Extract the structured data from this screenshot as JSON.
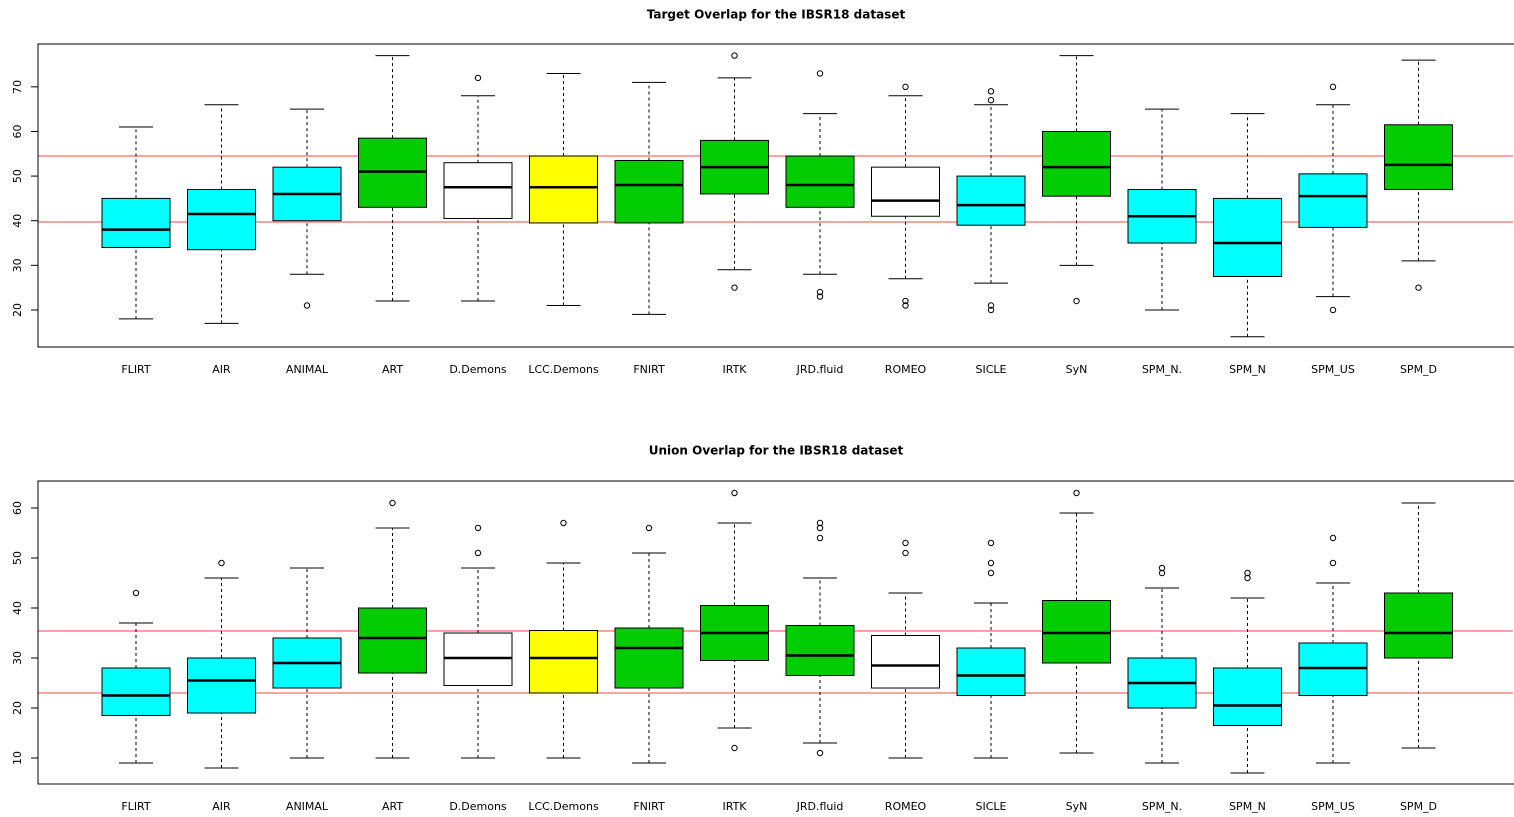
{
  "chart_data": [
    {
      "type": "box",
      "title": "Target Overlap for the IBSR18 dataset",
      "categories": [
        "FLIRT",
        "AIR",
        "ANIMAL",
        "ART",
        "D.Demons",
        "LCC.Demons",
        "FNIRT",
        "IRTK",
        "JRD.fluid",
        "ROMEO",
        "SICLE",
        "SyN",
        "SPM_N.",
        "SPM_N",
        "SPM_US",
        "SPM_D"
      ],
      "colors": [
        "#00ffff",
        "#00ffff",
        "#00ffff",
        "#00cc00",
        "#ffffff",
        "#ffff00",
        "#00cc00",
        "#00cc00",
        "#00cc00",
        "#ffffff",
        "#00ffff",
        "#00cc00",
        "#00ffff",
        "#00ffff",
        "#00ffff",
        "#00cc00"
      ],
      "boxes": [
        {
          "low": 18,
          "q1": 34,
          "median": 38,
          "q3": 45,
          "high": 61,
          "outliers": []
        },
        {
          "low": 17,
          "q1": 33.5,
          "median": 41.5,
          "q3": 47,
          "high": 66,
          "outliers": []
        },
        {
          "low": 28,
          "q1": 40,
          "median": 46,
          "q3": 52,
          "high": 65,
          "outliers": [
            21
          ]
        },
        {
          "low": 22,
          "q1": 43,
          "median": 51,
          "q3": 58.5,
          "high": 77,
          "outliers": []
        },
        {
          "low": 22,
          "q1": 40.5,
          "median": 47.5,
          "q3": 53,
          "high": 68,
          "outliers": [
            72
          ]
        },
        {
          "low": 21,
          "q1": 39.5,
          "median": 47.5,
          "q3": 54.5,
          "high": 73,
          "outliers": []
        },
        {
          "low": 19,
          "q1": 39.5,
          "median": 48,
          "q3": 53.5,
          "high": 71,
          "outliers": []
        },
        {
          "low": 29,
          "q1": 46,
          "median": 52,
          "q3": 58,
          "high": 72,
          "outliers": [
            77,
            25
          ]
        },
        {
          "low": 28,
          "q1": 43,
          "median": 48,
          "q3": 54.5,
          "high": 64,
          "outliers": [
            73,
            24,
            23
          ]
        },
        {
          "low": 27,
          "q1": 41,
          "median": 44.5,
          "q3": 52,
          "high": 68,
          "outliers": [
            70,
            22,
            21
          ]
        },
        {
          "low": 26,
          "q1": 39,
          "median": 43.5,
          "q3": 50,
          "high": 66,
          "outliers": [
            69,
            67,
            21,
            20
          ]
        },
        {
          "low": 30,
          "q1": 45.5,
          "median": 52,
          "q3": 60,
          "high": 77,
          "outliers": [
            22
          ]
        },
        {
          "low": 20,
          "q1": 35,
          "median": 41,
          "q3": 47,
          "high": 65,
          "outliers": []
        },
        {
          "low": 14,
          "q1": 27.5,
          "median": 35,
          "q3": 45,
          "high": 64,
          "outliers": []
        },
        {
          "low": 23,
          "q1": 38.5,
          "median": 45.5,
          "q3": 50.5,
          "high": 66,
          "outliers": [
            70,
            20
          ]
        },
        {
          "low": 31,
          "q1": 47,
          "median": 52.5,
          "q3": 61.5,
          "high": 76,
          "outliers": [
            25
          ]
        }
      ],
      "reference_lines": [
        54.5,
        39.7
      ],
      "reference_color": "#ff4444",
      "ylim": [
        11.7,
        79.6
      ],
      "yticks": [
        20,
        30,
        40,
        50,
        60,
        70
      ]
    },
    {
      "type": "box",
      "title": "Union Overlap for the IBSR18 dataset",
      "categories": [
        "FLIRT",
        "AIR",
        "ANIMAL",
        "ART",
        "D.Demons",
        "LCC.Demons",
        "FNIRT",
        "IRTK",
        "JRD.fluid",
        "ROMEO",
        "SICLE",
        "SyN",
        "SPM_N.",
        "SPM_N",
        "SPM_US",
        "SPM_D"
      ],
      "colors": [
        "#00ffff",
        "#00ffff",
        "#00ffff",
        "#00cc00",
        "#ffffff",
        "#ffff00",
        "#00cc00",
        "#00cc00",
        "#00cc00",
        "#ffffff",
        "#00ffff",
        "#00cc00",
        "#00ffff",
        "#00ffff",
        "#00ffff",
        "#00cc00"
      ],
      "boxes": [
        {
          "low": 9,
          "q1": 18.5,
          "median": 22.5,
          "q3": 28,
          "high": 37,
          "outliers": [
            43
          ]
        },
        {
          "low": 8,
          "q1": 19,
          "median": 25.5,
          "q3": 30,
          "high": 46,
          "outliers": [
            49
          ]
        },
        {
          "low": 10,
          "q1": 24,
          "median": 29,
          "q3": 34,
          "high": 48,
          "outliers": []
        },
        {
          "low": 10,
          "q1": 27,
          "median": 34,
          "q3": 40,
          "high": 56,
          "outliers": [
            61
          ]
        },
        {
          "low": 10,
          "q1": 24.5,
          "median": 30,
          "q3": 35,
          "high": 48,
          "outliers": [
            56,
            51
          ]
        },
        {
          "low": 10,
          "q1": 23,
          "median": 30,
          "q3": 35.5,
          "high": 49,
          "outliers": [
            57
          ]
        },
        {
          "low": 9,
          "q1": 24,
          "median": 32,
          "q3": 36,
          "high": 51,
          "outliers": [
            56
          ]
        },
        {
          "low": 16,
          "q1": 29.5,
          "median": 35,
          "q3": 40.5,
          "high": 57,
          "outliers": [
            63,
            12
          ]
        },
        {
          "low": 13,
          "q1": 26.5,
          "median": 30.5,
          "q3": 36.5,
          "high": 46,
          "outliers": [
            57,
            56,
            54,
            11
          ]
        },
        {
          "low": 10,
          "q1": 24,
          "median": 28.5,
          "q3": 34.5,
          "high": 43,
          "outliers": [
            53,
            51
          ]
        },
        {
          "low": 10,
          "q1": 22.5,
          "median": 26.5,
          "q3": 32,
          "high": 41,
          "outliers": [
            53,
            49,
            47
          ]
        },
        {
          "low": 11,
          "q1": 29,
          "median": 35,
          "q3": 41.5,
          "high": 59,
          "outliers": [
            63
          ]
        },
        {
          "low": 9,
          "q1": 20,
          "median": 25,
          "q3": 30,
          "high": 44,
          "outliers": [
            48,
            47
          ]
        },
        {
          "low": 7,
          "q1": 16.5,
          "median": 20.5,
          "q3": 28,
          "high": 42,
          "outliers": [
            47,
            46
          ]
        },
        {
          "low": 9,
          "q1": 22.5,
          "median": 28,
          "q3": 33,
          "high": 45,
          "outliers": [
            54,
            49
          ]
        },
        {
          "low": 12,
          "q1": 30,
          "median": 35,
          "q3": 43,
          "high": 61,
          "outliers": []
        }
      ],
      "reference_lines": [
        35.4,
        23
      ],
      "reference_color": "#ff4444",
      "ylim": [
        4.8,
        65.4
      ],
      "yticks": [
        10,
        20,
        30,
        40,
        50,
        60
      ]
    }
  ]
}
